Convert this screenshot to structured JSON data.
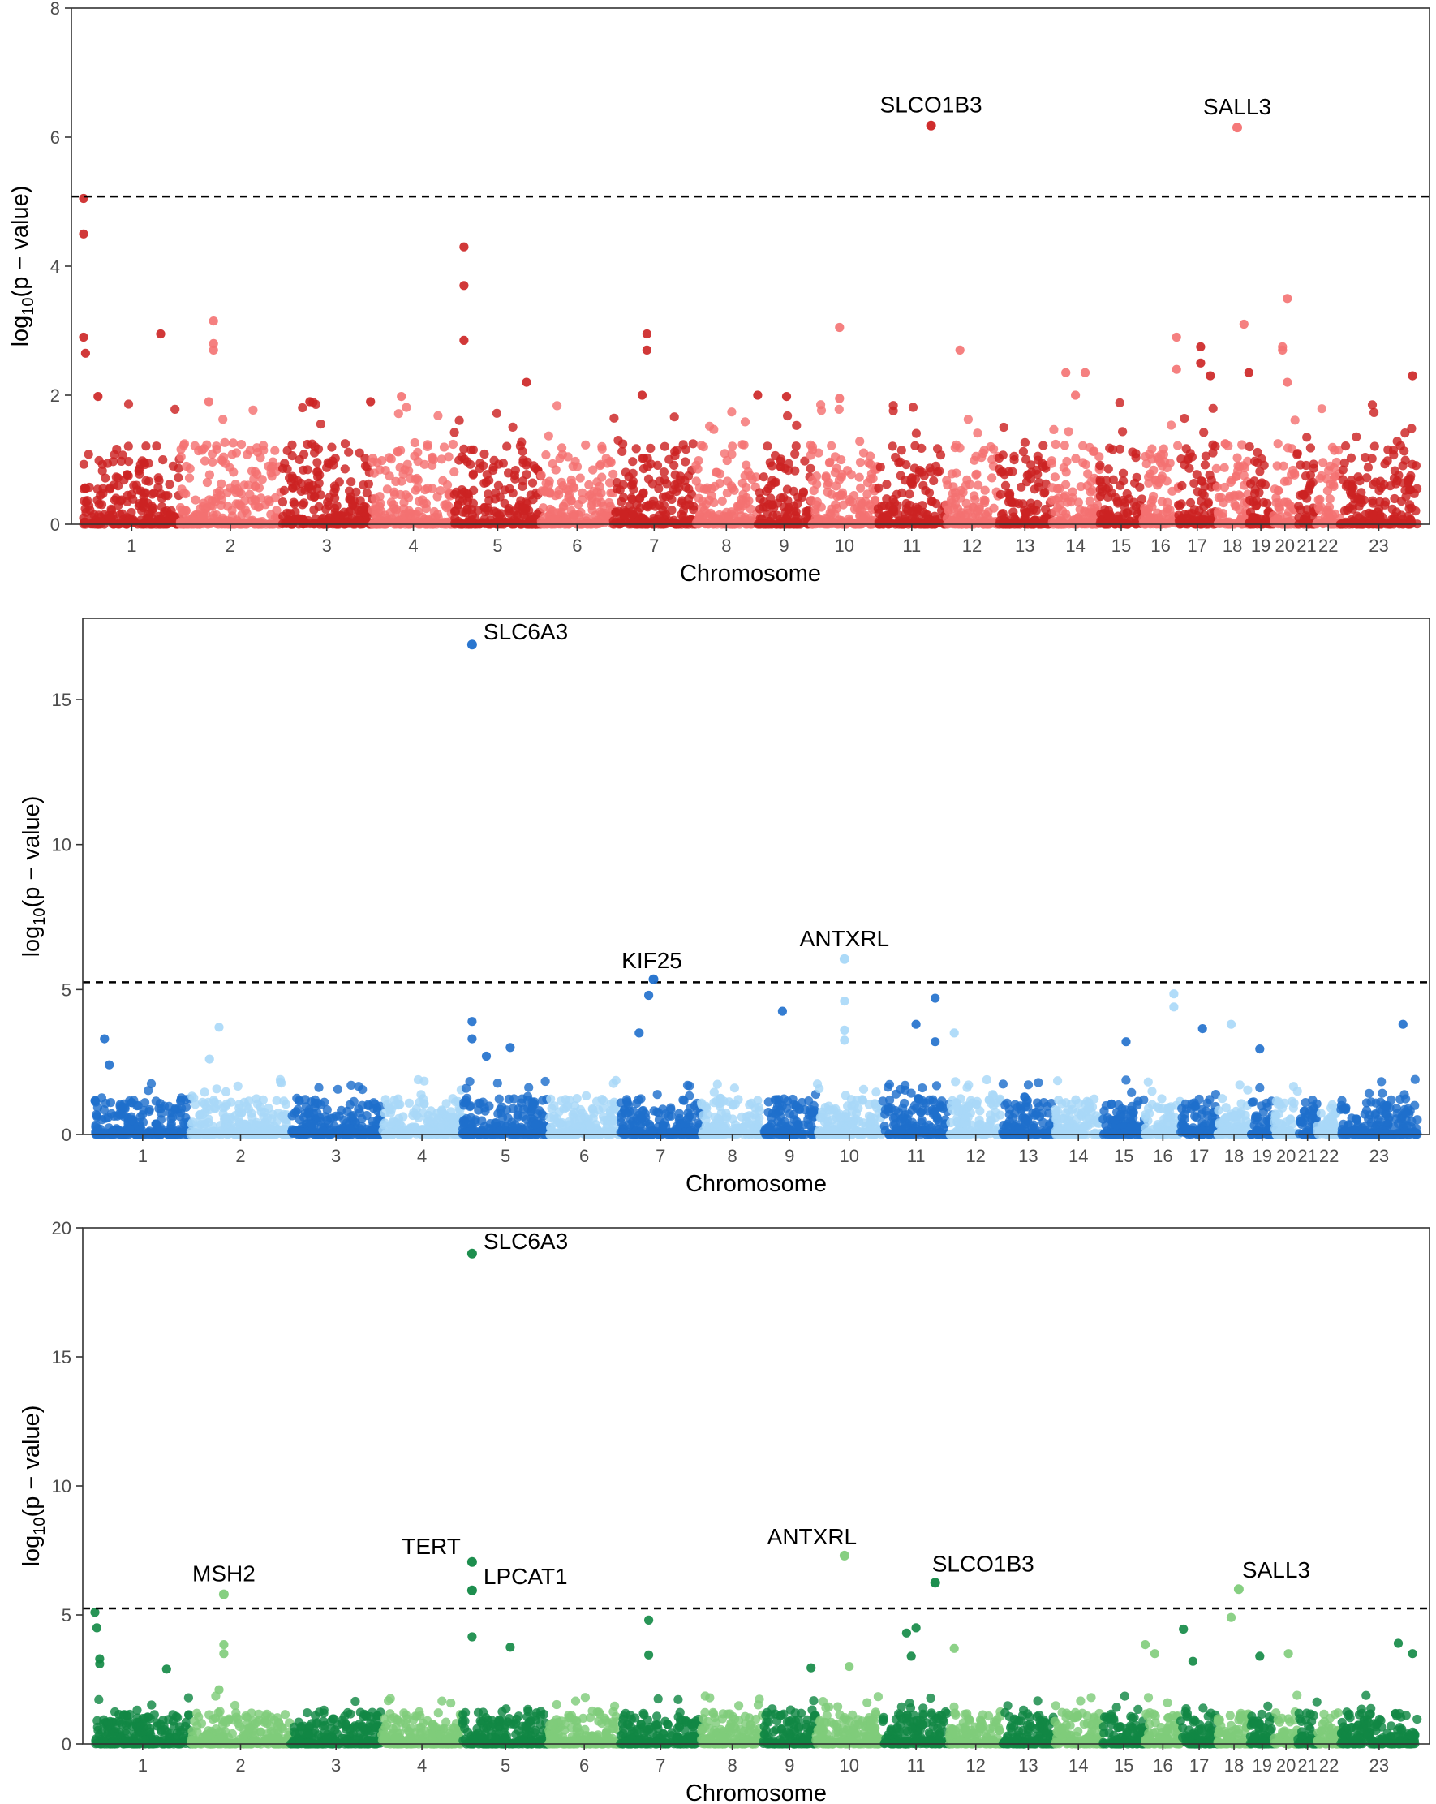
{
  "figure": {
    "x_axis_label": "Chromosome",
    "y_axis_label_prefix": "log",
    "y_axis_label_sub": "10",
    "y_axis_label_suffix": "(p − value)"
  },
  "chart_data": [
    {
      "type": "scatter",
      "subtype": "manhattan",
      "xlabel": "Chromosome",
      "ylabel": "log10(p − value)",
      "ylim": [
        0,
        8
      ],
      "yticks": [
        0,
        2,
        4,
        6,
        8
      ],
      "threshold": 5.08,
      "colors": [
        "#cc2222",
        "#f47272"
      ],
      "chromosomes": [
        {
          "label": "1",
          "start": 0.0,
          "end": 1.0
        },
        {
          "label": "2",
          "start": 1.0,
          "end": 2.05
        },
        {
          "label": "3",
          "start": 2.05,
          "end": 3.0
        },
        {
          "label": "4",
          "start": 3.0,
          "end": 3.85
        },
        {
          "label": "5",
          "start": 3.85,
          "end": 4.75
        },
        {
          "label": "6",
          "start": 4.75,
          "end": 5.5
        },
        {
          "label": "7",
          "start": 5.5,
          "end": 6.35
        },
        {
          "label": "8",
          "start": 6.35,
          "end": 7.0
        },
        {
          "label": "9",
          "start": 7.0,
          "end": 7.55
        },
        {
          "label": "10",
          "start": 7.55,
          "end": 8.25
        },
        {
          "label": "11",
          "start": 8.25,
          "end": 8.95
        },
        {
          "label": "12",
          "start": 8.95,
          "end": 9.5
        },
        {
          "label": "13",
          "start": 9.5,
          "end": 10.05
        },
        {
          "label": "14",
          "start": 10.05,
          "end": 10.55
        },
        {
          "label": "15",
          "start": 10.55,
          "end": 11.0
        },
        {
          "label": "16",
          "start": 11.0,
          "end": 11.37
        },
        {
          "label": "17",
          "start": 11.37,
          "end": 11.76
        },
        {
          "label": "18",
          "start": 11.76,
          "end": 12.1
        },
        {
          "label": "19",
          "start": 12.1,
          "end": 12.35
        },
        {
          "label": "20",
          "start": 12.35,
          "end": 12.6
        },
        {
          "label": "21",
          "start": 12.6,
          "end": 12.8
        },
        {
          "label": "22",
          "start": 12.8,
          "end": 13.05
        },
        {
          "label": "23",
          "start": 13.05,
          "end": 13.85
        }
      ],
      "highlights": [
        {
          "gene": "SLCO1B3",
          "x": 8.8,
          "y": 6.18
        },
        {
          "gene": "SALL3",
          "x": 11.98,
          "y": 6.15
        }
      ],
      "notable_points": [
        {
          "x": 0.0,
          "y": 5.05
        },
        {
          "x": 0.0,
          "y": 4.5
        },
        {
          "x": 0.0,
          "y": 2.9
        },
        {
          "x": 0.02,
          "y": 2.65
        },
        {
          "x": 0.15,
          "y": 1.98
        },
        {
          "x": 0.8,
          "y": 2.95
        },
        {
          "x": 1.35,
          "y": 3.15
        },
        {
          "x": 1.35,
          "y": 2.8
        },
        {
          "x": 1.35,
          "y": 2.7
        },
        {
          "x": 1.3,
          "y": 1.9
        },
        {
          "x": 2.35,
          "y": 1.9
        },
        {
          "x": 2.98,
          "y": 1.9
        },
        {
          "x": 3.3,
          "y": 1.98
        },
        {
          "x": 3.95,
          "y": 4.3
        },
        {
          "x": 3.95,
          "y": 3.7
        },
        {
          "x": 3.95,
          "y": 2.85
        },
        {
          "x": 4.6,
          "y": 2.2
        },
        {
          "x": 5.85,
          "y": 2.95
        },
        {
          "x": 5.85,
          "y": 2.7
        },
        {
          "x": 5.8,
          "y": 2.0
        },
        {
          "x": 7.0,
          "y": 2.0
        },
        {
          "x": 7.3,
          "y": 1.98
        },
        {
          "x": 7.85,
          "y": 3.05
        },
        {
          "x": 7.85,
          "y": 1.95
        },
        {
          "x": 9.1,
          "y": 2.7
        },
        {
          "x": 10.2,
          "y": 2.35
        },
        {
          "x": 10.3,
          "y": 2.0
        },
        {
          "x": 10.4,
          "y": 2.35
        },
        {
          "x": 11.35,
          "y": 2.9
        },
        {
          "x": 11.35,
          "y": 2.4
        },
        {
          "x": 11.6,
          "y": 2.75
        },
        {
          "x": 11.6,
          "y": 2.5
        },
        {
          "x": 11.7,
          "y": 2.3
        },
        {
          "x": 12.05,
          "y": 3.1
        },
        {
          "x": 12.1,
          "y": 2.35
        },
        {
          "x": 12.5,
          "y": 3.5
        },
        {
          "x": 12.45,
          "y": 2.75
        },
        {
          "x": 12.45,
          "y": 2.7
        },
        {
          "x": 12.5,
          "y": 2.2
        },
        {
          "x": 13.8,
          "y": 2.3
        }
      ]
    },
    {
      "type": "scatter",
      "subtype": "manhattan",
      "xlabel": "Chromosome",
      "ylabel": "log10(p − value)",
      "ylim": [
        0,
        17.8
      ],
      "yticks": [
        0,
        5,
        10,
        15
      ],
      "threshold": 5.25,
      "colors": [
        "#1f6fcc",
        "#a8d8f8"
      ],
      "chromosomes": [
        {
          "label": "1",
          "start": 0.0,
          "end": 1.0
        },
        {
          "label": "2",
          "start": 1.0,
          "end": 2.05
        },
        {
          "label": "3",
          "start": 2.05,
          "end": 3.0
        },
        {
          "label": "4",
          "start": 3.0,
          "end": 3.85
        },
        {
          "label": "5",
          "start": 3.85,
          "end": 4.75
        },
        {
          "label": "6",
          "start": 4.75,
          "end": 5.5
        },
        {
          "label": "7",
          "start": 5.5,
          "end": 6.35
        },
        {
          "label": "8",
          "start": 6.35,
          "end": 7.0
        },
        {
          "label": "9",
          "start": 7.0,
          "end": 7.55
        },
        {
          "label": "10",
          "start": 7.55,
          "end": 8.25
        },
        {
          "label": "11",
          "start": 8.25,
          "end": 8.95
        },
        {
          "label": "12",
          "start": 8.95,
          "end": 9.5
        },
        {
          "label": "13",
          "start": 9.5,
          "end": 10.05
        },
        {
          "label": "14",
          "start": 10.05,
          "end": 10.55
        },
        {
          "label": "15",
          "start": 10.55,
          "end": 11.0
        },
        {
          "label": "16",
          "start": 11.0,
          "end": 11.37
        },
        {
          "label": "17",
          "start": 11.37,
          "end": 11.76
        },
        {
          "label": "18",
          "start": 11.76,
          "end": 12.1
        },
        {
          "label": "19",
          "start": 12.1,
          "end": 12.35
        },
        {
          "label": "20",
          "start": 12.35,
          "end": 12.6
        },
        {
          "label": "21",
          "start": 12.6,
          "end": 12.8
        },
        {
          "label": "22",
          "start": 12.8,
          "end": 13.05
        },
        {
          "label": "23",
          "start": 13.05,
          "end": 13.85
        }
      ],
      "highlights": [
        {
          "gene": "SLC6A3",
          "x": 3.95,
          "y": 16.9
        },
        {
          "gene": "KIF25",
          "x": 5.85,
          "y": 5.35
        },
        {
          "gene": "ANTXRL",
          "x": 7.85,
          "y": 6.05
        }
      ],
      "notable_points": [
        {
          "x": 0.1,
          "y": 3.3
        },
        {
          "x": 0.15,
          "y": 2.4
        },
        {
          "x": 1.3,
          "y": 3.7
        },
        {
          "x": 1.2,
          "y": 2.6
        },
        {
          "x": 3.95,
          "y": 3.9
        },
        {
          "x": 3.95,
          "y": 3.3
        },
        {
          "x": 4.1,
          "y": 2.7
        },
        {
          "x": 4.35,
          "y": 3.0
        },
        {
          "x": 5.8,
          "y": 4.8
        },
        {
          "x": 5.7,
          "y": 3.5
        },
        {
          "x": 7.2,
          "y": 4.25
        },
        {
          "x": 7.85,
          "y": 4.6
        },
        {
          "x": 7.85,
          "y": 3.6
        },
        {
          "x": 7.85,
          "y": 3.25
        },
        {
          "x": 8.6,
          "y": 3.8
        },
        {
          "x": 8.8,
          "y": 4.7
        },
        {
          "x": 8.8,
          "y": 3.2
        },
        {
          "x": 9.0,
          "y": 3.5
        },
        {
          "x": 10.8,
          "y": 3.2
        },
        {
          "x": 11.3,
          "y": 4.85
        },
        {
          "x": 11.3,
          "y": 4.4
        },
        {
          "x": 11.6,
          "y": 3.65
        },
        {
          "x": 11.9,
          "y": 3.8
        },
        {
          "x": 12.2,
          "y": 2.95
        },
        {
          "x": 13.7,
          "y": 3.8
        }
      ]
    },
    {
      "type": "scatter",
      "subtype": "manhattan",
      "xlabel": "Chromosome",
      "ylabel": "log10(p − value)",
      "ylim": [
        0,
        20
      ],
      "yticks": [
        0,
        5,
        10,
        15,
        20
      ],
      "threshold": 5.25,
      "colors": [
        "#118844",
        "#7fcc7a"
      ],
      "chromosomes": [
        {
          "label": "1",
          "start": 0.0,
          "end": 1.0
        },
        {
          "label": "2",
          "start": 1.0,
          "end": 2.05
        },
        {
          "label": "3",
          "start": 2.05,
          "end": 3.0
        },
        {
          "label": "4",
          "start": 3.0,
          "end": 3.85
        },
        {
          "label": "5",
          "start": 3.85,
          "end": 4.75
        },
        {
          "label": "6",
          "start": 4.75,
          "end": 5.5
        },
        {
          "label": "7",
          "start": 5.5,
          "end": 6.35
        },
        {
          "label": "8",
          "start": 6.35,
          "end": 7.0
        },
        {
          "label": "9",
          "start": 7.0,
          "end": 7.55
        },
        {
          "label": "10",
          "start": 7.55,
          "end": 8.25
        },
        {
          "label": "11",
          "start": 8.25,
          "end": 8.95
        },
        {
          "label": "12",
          "start": 8.95,
          "end": 9.5
        },
        {
          "label": "13",
          "start": 9.5,
          "end": 10.05
        },
        {
          "label": "14",
          "start": 10.05,
          "end": 10.55
        },
        {
          "label": "15",
          "start": 10.55,
          "end": 11.0
        },
        {
          "label": "16",
          "start": 11.0,
          "end": 11.37
        },
        {
          "label": "17",
          "start": 11.37,
          "end": 11.76
        },
        {
          "label": "18",
          "start": 11.76,
          "end": 12.1
        },
        {
          "label": "19",
          "start": 12.1,
          "end": 12.35
        },
        {
          "label": "20",
          "start": 12.35,
          "end": 12.6
        },
        {
          "label": "21",
          "start": 12.6,
          "end": 12.8
        },
        {
          "label": "22",
          "start": 12.8,
          "end": 13.05
        },
        {
          "label": "23",
          "start": 13.05,
          "end": 13.85
        }
      ],
      "highlights": [
        {
          "gene": "SLC6A3",
          "x": 3.95,
          "y": 19.0
        },
        {
          "gene": "MSH2",
          "x": 1.35,
          "y": 5.8
        },
        {
          "gene": "TERT",
          "x": 3.95,
          "y": 7.05
        },
        {
          "gene": "LPCAT1",
          "x": 3.95,
          "y": 5.95
        },
        {
          "gene": "ANTXRL",
          "x": 7.85,
          "y": 7.3
        },
        {
          "gene": "SLCO1B3",
          "x": 8.8,
          "y": 6.25
        },
        {
          "gene": "SALL3",
          "x": 11.98,
          "y": 6.0
        }
      ],
      "notable_points": [
        {
          "x": 0.0,
          "y": 5.1
        },
        {
          "x": 0.02,
          "y": 4.5
        },
        {
          "x": 0.05,
          "y": 3.3
        },
        {
          "x": 0.05,
          "y": 3.1
        },
        {
          "x": 0.75,
          "y": 2.9
        },
        {
          "x": 1.35,
          "y": 3.85
        },
        {
          "x": 1.35,
          "y": 3.5
        },
        {
          "x": 1.3,
          "y": 2.1
        },
        {
          "x": 3.95,
          "y": 4.15
        },
        {
          "x": 4.35,
          "y": 3.75
        },
        {
          "x": 5.8,
          "y": 4.8
        },
        {
          "x": 5.8,
          "y": 3.45
        },
        {
          "x": 7.5,
          "y": 2.95
        },
        {
          "x": 7.9,
          "y": 3.0
        },
        {
          "x": 8.5,
          "y": 4.3
        },
        {
          "x": 8.6,
          "y": 4.5
        },
        {
          "x": 8.55,
          "y": 3.4
        },
        {
          "x": 9.0,
          "y": 3.7
        },
        {
          "x": 11.0,
          "y": 3.85
        },
        {
          "x": 11.1,
          "y": 3.5
        },
        {
          "x": 11.4,
          "y": 4.45
        },
        {
          "x": 11.5,
          "y": 3.2
        },
        {
          "x": 11.9,
          "y": 4.9
        },
        {
          "x": 12.2,
          "y": 3.4
        },
        {
          "x": 12.5,
          "y": 3.5
        },
        {
          "x": 13.65,
          "y": 3.9
        },
        {
          "x": 13.8,
          "y": 3.5
        }
      ]
    }
  ]
}
